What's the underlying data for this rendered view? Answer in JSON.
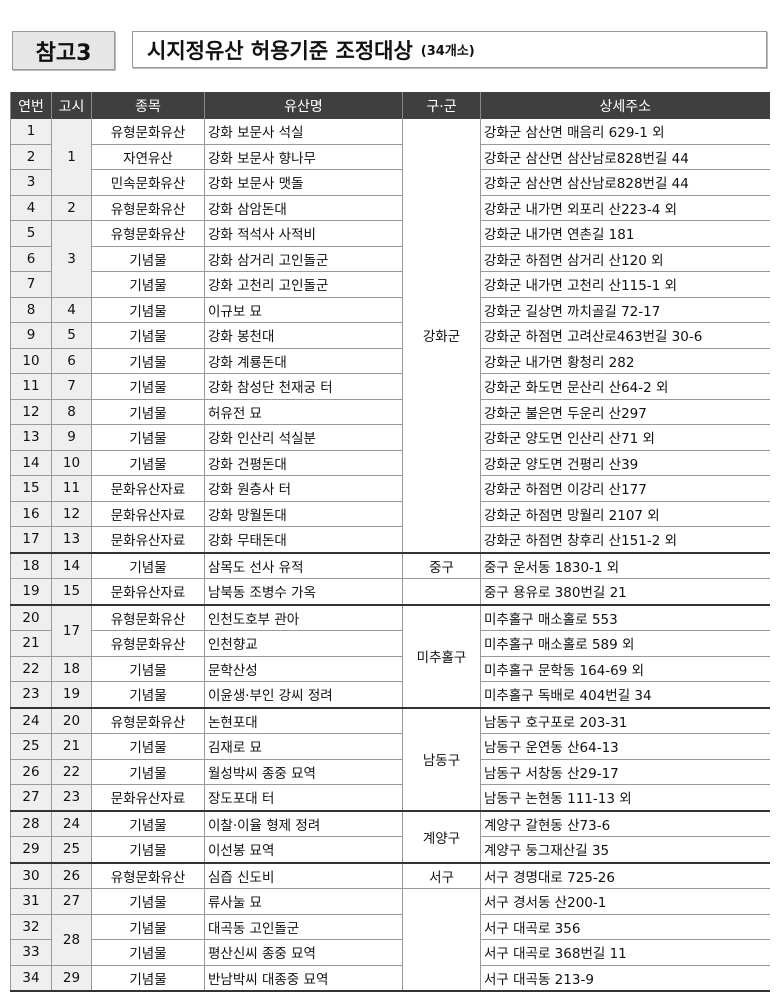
{
  "header": {
    "badge": "참고3",
    "title": "시지정유산 허용기준 조정대상",
    "count": "(34개소)"
  },
  "columns": [
    "연번",
    "고시",
    "종목",
    "유산명",
    "구·군",
    "상세주소"
  ],
  "rows": [
    {
      "no": "1",
      "notice": "1",
      "category": "유형문화유산",
      "name": "강화 보문사 석실",
      "district": "강화군",
      "address": "강화군 삼산면 매음리 629-1 외"
    },
    {
      "no": "2",
      "category": "자연유산",
      "name": "강화 보문사 향나무",
      "address": "강화군 삼산면 삼산남로828번길 44"
    },
    {
      "no": "3",
      "category": "민속문화유산",
      "name": "강화 보문사 맷돌",
      "address": "강화군 삼산면 삼산남로828번길 44"
    },
    {
      "no": "4",
      "notice": "2",
      "category": "유형문화유산",
      "name": "강화 삼암돈대",
      "address": "강화군 내가면 외포리 산223-4 외"
    },
    {
      "no": "5",
      "notice": "3",
      "category": "유형문화유산",
      "name": "강화 적석사 사적비",
      "address": "강화군 내가면 연촌길 181"
    },
    {
      "no": "6",
      "category": "기념물",
      "name": "강화 삼거리 고인돌군",
      "address": "강화군 하점면 삼거리 산120 외"
    },
    {
      "no": "7",
      "category": "기념물",
      "name": "강화 고천리 고인돌군",
      "address": "강화군 내가면 고천리 산115-1 외"
    },
    {
      "no": "8",
      "notice": "4",
      "category": "기념물",
      "name": "이규보 묘",
      "address": "강화군 길상면 까치골길 72-17"
    },
    {
      "no": "9",
      "notice": "5",
      "category": "기념물",
      "name": "강화 봉천대",
      "address": "강화군 하점면 고려산로463번길 30-6"
    },
    {
      "no": "10",
      "notice": "6",
      "category": "기념물",
      "name": "강화 계룡돈대",
      "address": "강화군 내가면 황청리 282"
    },
    {
      "no": "11",
      "notice": "7",
      "category": "기념물",
      "name": "강화 참성단 천재궁 터",
      "address": "강화군 화도면 문산리 산64-2 외"
    },
    {
      "no": "12",
      "notice": "8",
      "category": "기념물",
      "name": "허유전 묘",
      "address": "강화군 불은면 두운리 산297"
    },
    {
      "no": "13",
      "notice": "9",
      "category": "기념물",
      "name": "강화 인산리 석실분",
      "address": "강화군 양도면 인산리 산71 외"
    },
    {
      "no": "14",
      "notice": "10",
      "category": "기념물",
      "name": "강화 건평돈대",
      "address": "강화군 양도면 건평리 산39"
    },
    {
      "no": "15",
      "notice": "11",
      "category": "문화유산자료",
      "name": "강화 원층사 터",
      "address": "강화군 하점면 이강리 산177"
    },
    {
      "no": "16",
      "notice": "12",
      "category": "문화유산자료",
      "name": "강화 망월돈대",
      "address": "강화군 하점면 망월리 2107 외"
    },
    {
      "no": "17",
      "notice": "13",
      "category": "문화유산자료",
      "name": "강화 무태돈대",
      "address": "강화군 하점면 창후리 산151-2 외"
    },
    {
      "no": "18",
      "notice": "14",
      "category": "기념물",
      "name": "삼목도 선사 유적",
      "district": "중구",
      "address": "중구 운서동 1830-1 외",
      "sep": true
    },
    {
      "no": "19",
      "notice": "15",
      "category": "문화유산자료",
      "name": "남북동 조병수 가옥",
      "district": "",
      "address": "중구 용유로 380번길 21"
    },
    {
      "no": "20",
      "notice": "17",
      "category": "유형문화유산",
      "name": "인천도호부 관아",
      "district": "미추홀구",
      "address": "미추홀구 매소홀로 553",
      "sep": true
    },
    {
      "no": "21",
      "category": "유형문화유산",
      "name": "인천향교",
      "address": "미추홀구 매소홀로 589 외"
    },
    {
      "no": "22",
      "notice": "18",
      "category": "기념물",
      "name": "문학산성",
      "address": "미추홀구 문학동 164-69 외"
    },
    {
      "no": "23",
      "notice": "19",
      "category": "기념물",
      "name": "이윤생·부인 강씨 정려",
      "address": "미추홀구 독배로 404번길 34"
    },
    {
      "no": "24",
      "notice": "20",
      "category": "유형문화유산",
      "name": "논현포대",
      "district": "남동구",
      "address": "남동구 호구포로 203-31",
      "sep": true
    },
    {
      "no": "25",
      "notice": "21",
      "category": "기념물",
      "name": "김재로 묘",
      "address": "남동구 운연동 산64-13"
    },
    {
      "no": "26",
      "notice": "22",
      "category": "기념물",
      "name": "월성박씨 종중 묘역",
      "address": "남동구 서창동 산29-17"
    },
    {
      "no": "27",
      "notice": "23",
      "category": "문화유산자료",
      "name": "장도포대 터",
      "address": "남동구 논현동 111-13 외"
    },
    {
      "no": "28",
      "notice": "24",
      "category": "기념물",
      "name": "이찰·이율 형제 정려",
      "district": "계양구",
      "address": "계양구 갈현동 산73-6",
      "sep": true
    },
    {
      "no": "29",
      "notice": "25",
      "category": "기념물",
      "name": "이선봉 묘역",
      "address": "계양구 둥그재산길 35"
    },
    {
      "no": "30",
      "notice": "26",
      "category": "유형문화유산",
      "name": "심즙 신도비",
      "district": "서구",
      "address": "서구 경명대로 725-26",
      "sep": true
    },
    {
      "no": "31",
      "notice": "27",
      "category": "기념물",
      "name": "류사눌 묘",
      "district": "",
      "address": "서구 경서동 산200-1"
    },
    {
      "no": "32",
      "notice": "28",
      "category": "기념물",
      "name": "대곡동 고인돌군",
      "address": "서구 대곡로 356"
    },
    {
      "no": "33",
      "category": "기념물",
      "name": "평산신씨 종중 묘역",
      "address": "서구 대곡로 368번길 11"
    },
    {
      "no": "34",
      "notice": "29",
      "category": "기념물",
      "name": "반남박씨 대종중 묘역",
      "address": "서구 대곡동 213-9"
    }
  ]
}
